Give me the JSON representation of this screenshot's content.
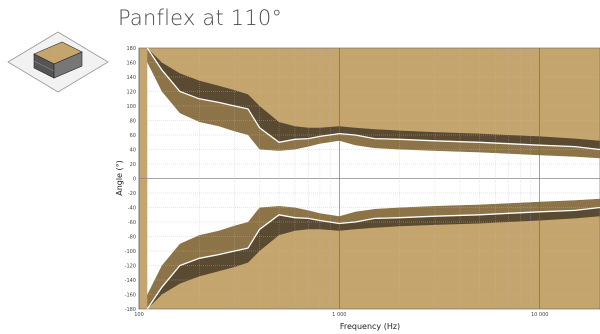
{
  "title": "Panflex at 110°",
  "colors": {
    "background_level": "#c5a56e",
    "outer_band": "#5a4a32",
    "inner_band": "#8c7448",
    "contour": "#ffffff"
  },
  "chart_data": {
    "type": "heatmap",
    "title": "Panflex at 110°",
    "xlabel": "Frequency (Hz)",
    "ylabel": "Angle (°)",
    "xscale": "log",
    "xlim": [
      100,
      20000
    ],
    "ylim": [
      -180,
      180
    ],
    "x_tick_labels": [
      "100",
      "1 000",
      "10 000"
    ],
    "x_ticks": [
      100,
      1000,
      10000
    ],
    "y_ticks": [
      180,
      160,
      140,
      120,
      100,
      80,
      60,
      40,
      20,
      0,
      -20,
      -40,
      -60,
      -80,
      -100,
      -120,
      -140,
      -160,
      -180
    ],
    "y_tick_labels": [
      "180",
      "160",
      "140",
      "120",
      "100",
      "80",
      "60",
      "40",
      "20",
      "0",
      "-20",
      "-40",
      "-60",
      "-80",
      "-100",
      "-120",
      "-140",
      "-160",
      "-180"
    ],
    "grid": true,
    "freq": [
      110,
      130,
      160,
      200,
      250,
      300,
      350,
      400,
      500,
      600,
      700,
      800,
      1000,
      1200,
      1500,
      2000,
      3000,
      5000,
      7000,
      10000,
      15000,
      20000
    ],
    "outer_edge_deg": [
      180,
      160,
      145,
      135,
      128,
      122,
      116,
      100,
      78,
      72,
      70,
      70,
      72,
      70,
      68,
      66,
      64,
      62,
      60,
      58,
      55,
      52
    ],
    "contour_deg": [
      180,
      150,
      120,
      110,
      105,
      100,
      96,
      70,
      50,
      54,
      55,
      58,
      62,
      60,
      55,
      54,
      52,
      50,
      48,
      46,
      44,
      40
    ],
    "inner_edge_deg": [
      160,
      120,
      90,
      78,
      72,
      65,
      60,
      40,
      38,
      40,
      44,
      48,
      52,
      46,
      42,
      40,
      38,
      36,
      34,
      32,
      30,
      28
    ]
  }
}
